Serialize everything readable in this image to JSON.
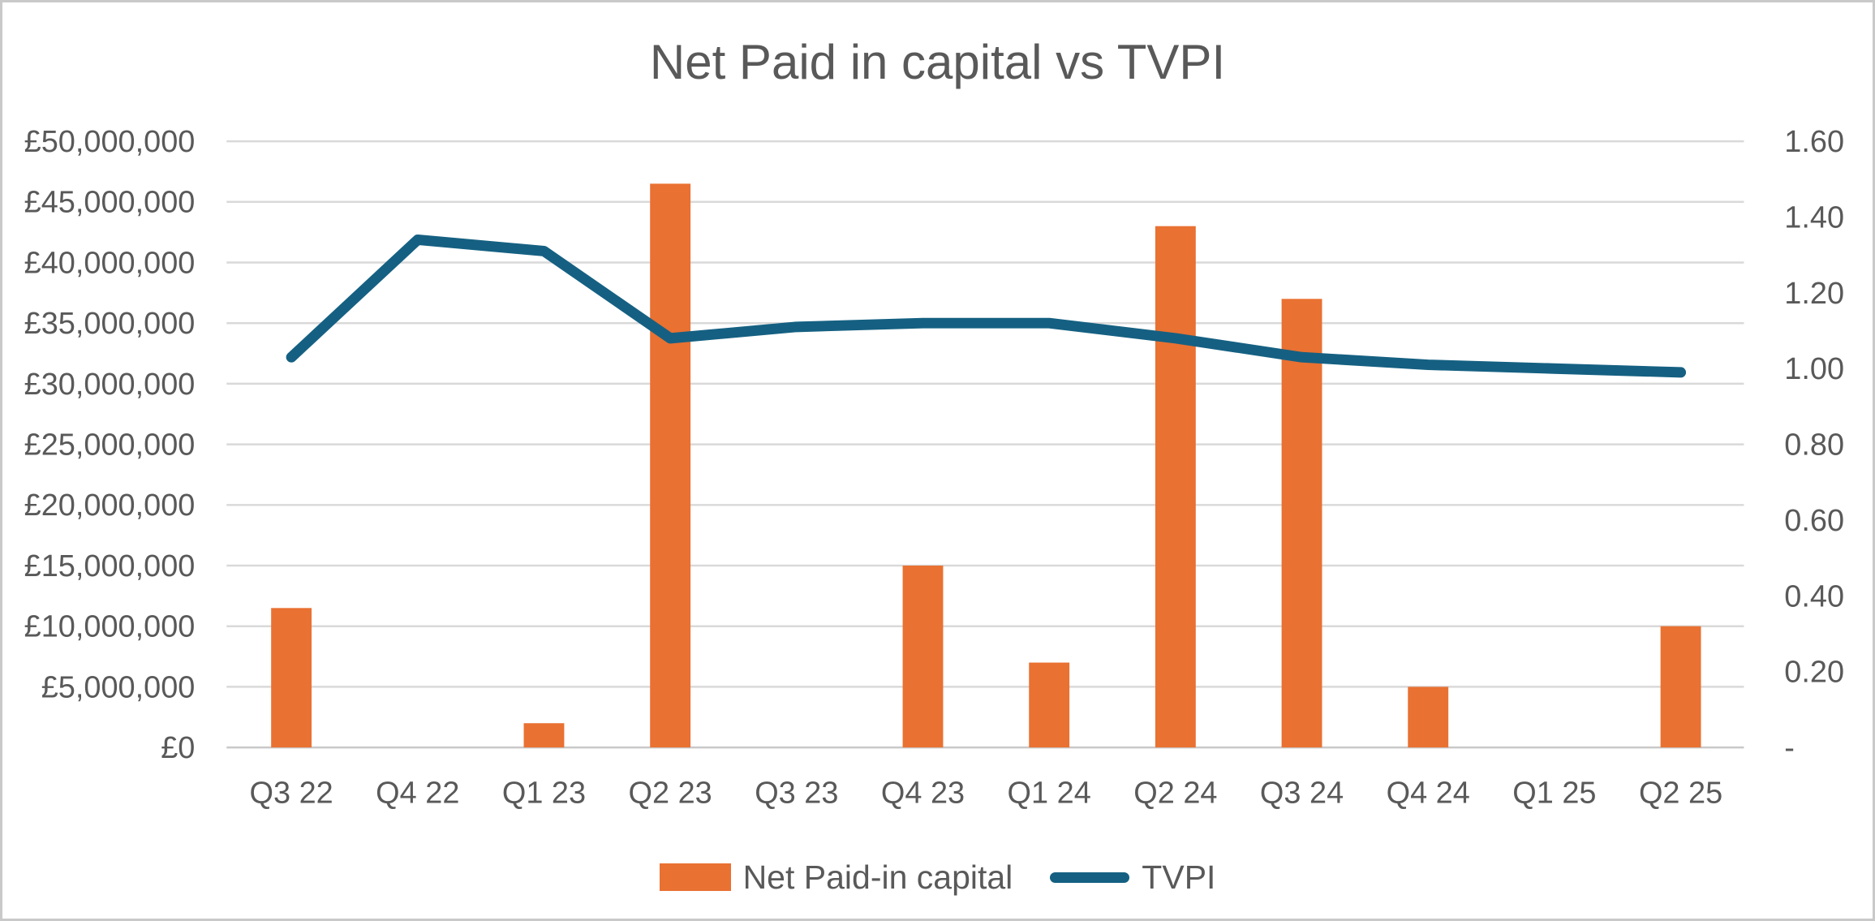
{
  "title": "Net Paid in capital vs TVPI",
  "colors": {
    "bar": "#E97132",
    "line": "#156082",
    "text": "#595959",
    "grid": "#D9D9D9",
    "axis_line": "#C9C9C9",
    "background": "#FFFFFF"
  },
  "chart_data": {
    "type": "combo",
    "title": "Net Paid in capital vs TVPI",
    "categories": [
      "Q3 22",
      "Q4 22",
      "Q1 23",
      "Q2 23",
      "Q3 23",
      "Q4 23",
      "Q1 24",
      "Q2 24",
      "Q3 24",
      "Q4 24",
      "Q1 25",
      "Q2 25"
    ],
    "series": [
      {
        "name": "Net Paid-in capital",
        "type": "bar",
        "axis": "left",
        "color": "#E97132",
        "values": [
          11500000,
          0,
          2000000,
          46500000,
          0,
          15000000,
          7000000,
          43000000,
          37000000,
          5000000,
          0,
          10000000
        ]
      },
      {
        "name": "TVPI",
        "type": "line",
        "axis": "right",
        "color": "#156082",
        "values": [
          1.03,
          1.34,
          1.31,
          1.08,
          1.11,
          1.12,
          1.12,
          1.08,
          1.03,
          1.01,
          1.0,
          0.99
        ]
      }
    ],
    "left_axis": {
      "min": 0,
      "max": 50000000,
      "step": 5000000,
      "labels": [
        "£0",
        "£5,000,000",
        "£10,000,000",
        "£15,000,000",
        "£20,000,000",
        "£25,000,000",
        "£30,000,000",
        "£35,000,000",
        "£40,000,000",
        "£45,000,000",
        "£50,000,000"
      ]
    },
    "right_axis": {
      "min": 0,
      "max": 1.6,
      "step": 0.2,
      "labels": [
        "-",
        "0.20",
        "0.40",
        "0.60",
        "0.80",
        "1.00",
        "1.20",
        "1.40",
        "1.60"
      ]
    },
    "grid": true,
    "legend_position": "bottom"
  }
}
